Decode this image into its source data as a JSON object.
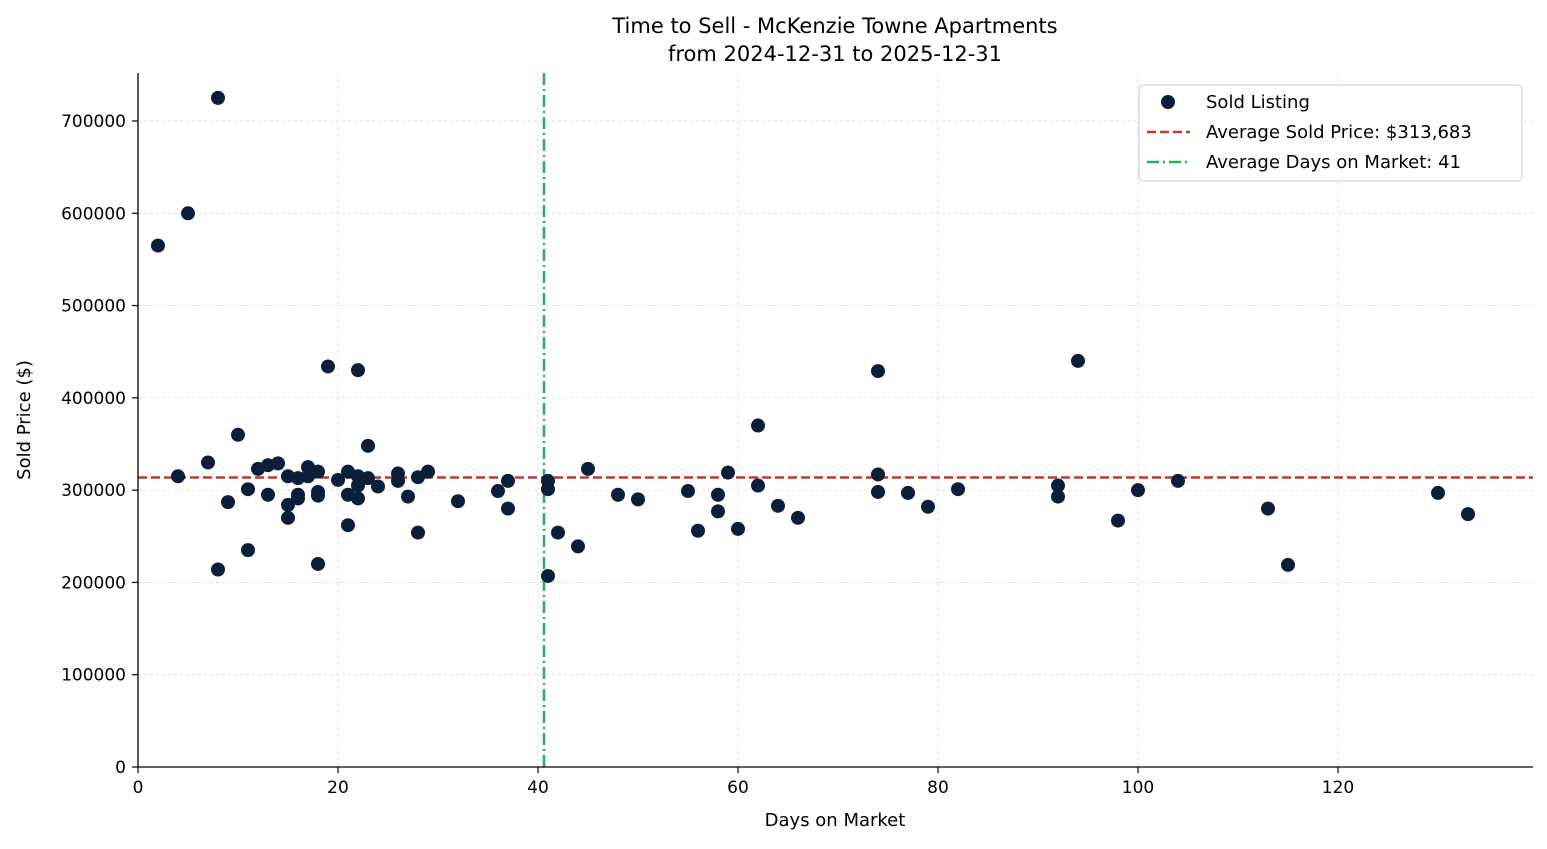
{
  "chart_data": {
    "type": "scatter",
    "title": "Time to Sell - McKenzie Towne Apartments",
    "subtitle": "from 2024-12-31 to 2025-12-31",
    "xlabel": "Days on Market",
    "ylabel": "Sold Price ($)",
    "xlim": [
      0,
      139.5
    ],
    "ylim": [
      0,
      752000
    ],
    "xticks": [
      0,
      20,
      40,
      60,
      80,
      100,
      120
    ],
    "yticks": [
      0,
      100000,
      200000,
      300000,
      400000,
      500000,
      600000,
      700000
    ],
    "grid": true,
    "legend_position": "top-right",
    "colors": {
      "points": "#0c1f3a",
      "avg_price": "#c0392b",
      "avg_days": "#27ae60",
      "grid": "#d9d9d9"
    },
    "legend": [
      {
        "label": "Sold Listing",
        "kind": "marker"
      },
      {
        "label": "Average Sold Price: $313,683",
        "kind": "dashed"
      },
      {
        "label": "Average Days on Market: 41",
        "kind": "dashdot"
      }
    ],
    "avg_price": 313683,
    "avg_days": 40.6,
    "points": [
      [
        2,
        565000
      ],
      [
        4,
        315000
      ],
      [
        5,
        600000
      ],
      [
        7,
        330000
      ],
      [
        8,
        725000
      ],
      [
        8,
        214000
      ],
      [
        9,
        287000
      ],
      [
        10,
        360000
      ],
      [
        11,
        301000
      ],
      [
        11,
        235000
      ],
      [
        12,
        323000
      ],
      [
        13,
        327000
      ],
      [
        13,
        295000
      ],
      [
        14,
        329000
      ],
      [
        15,
        315000
      ],
      [
        15,
        284000
      ],
      [
        15,
        270000
      ],
      [
        16,
        313000
      ],
      [
        16,
        295000
      ],
      [
        16,
        291000
      ],
      [
        17,
        325000
      ],
      [
        17,
        315000
      ],
      [
        18,
        320000
      ],
      [
        18,
        298000
      ],
      [
        18,
        294000
      ],
      [
        18,
        220000
      ],
      [
        19,
        434000
      ],
      [
        20,
        311000
      ],
      [
        21,
        320000
      ],
      [
        21,
        295000
      ],
      [
        21,
        262000
      ],
      [
        22,
        430000
      ],
      [
        22,
        315000
      ],
      [
        22,
        305000
      ],
      [
        22,
        291000
      ],
      [
        23,
        348000
      ],
      [
        23,
        313000
      ],
      [
        24,
        304000
      ],
      [
        26,
        318000
      ],
      [
        26,
        310000
      ],
      [
        27,
        293000
      ],
      [
        28,
        314000
      ],
      [
        28,
        254000
      ],
      [
        29,
        320000
      ],
      [
        32,
        288000
      ],
      [
        36,
        299000
      ],
      [
        37,
        310000
      ],
      [
        37,
        280000
      ],
      [
        41,
        310000
      ],
      [
        41,
        301000
      ],
      [
        41,
        207000
      ],
      [
        42,
        254000
      ],
      [
        44,
        239000
      ],
      [
        45,
        323000
      ],
      [
        48,
        295000
      ],
      [
        50,
        290000
      ],
      [
        55,
        299000
      ],
      [
        56,
        256000
      ],
      [
        58,
        295000
      ],
      [
        58,
        277000
      ],
      [
        59,
        319000
      ],
      [
        60,
        258000
      ],
      [
        62,
        370000
      ],
      [
        62,
        305000
      ],
      [
        64,
        283000
      ],
      [
        66,
        270000
      ],
      [
        74,
        429000
      ],
      [
        74,
        317000
      ],
      [
        74,
        298000
      ],
      [
        77,
        297000
      ],
      [
        79,
        282000
      ],
      [
        82,
        301000
      ],
      [
        92,
        305000
      ],
      [
        92,
        293000
      ],
      [
        94,
        440000
      ],
      [
        98,
        267000
      ],
      [
        100,
        300000
      ],
      [
        104,
        310000
      ],
      [
        113,
        280000
      ],
      [
        115,
        219000
      ],
      [
        130,
        297000
      ],
      [
        133,
        274000
      ]
    ]
  }
}
